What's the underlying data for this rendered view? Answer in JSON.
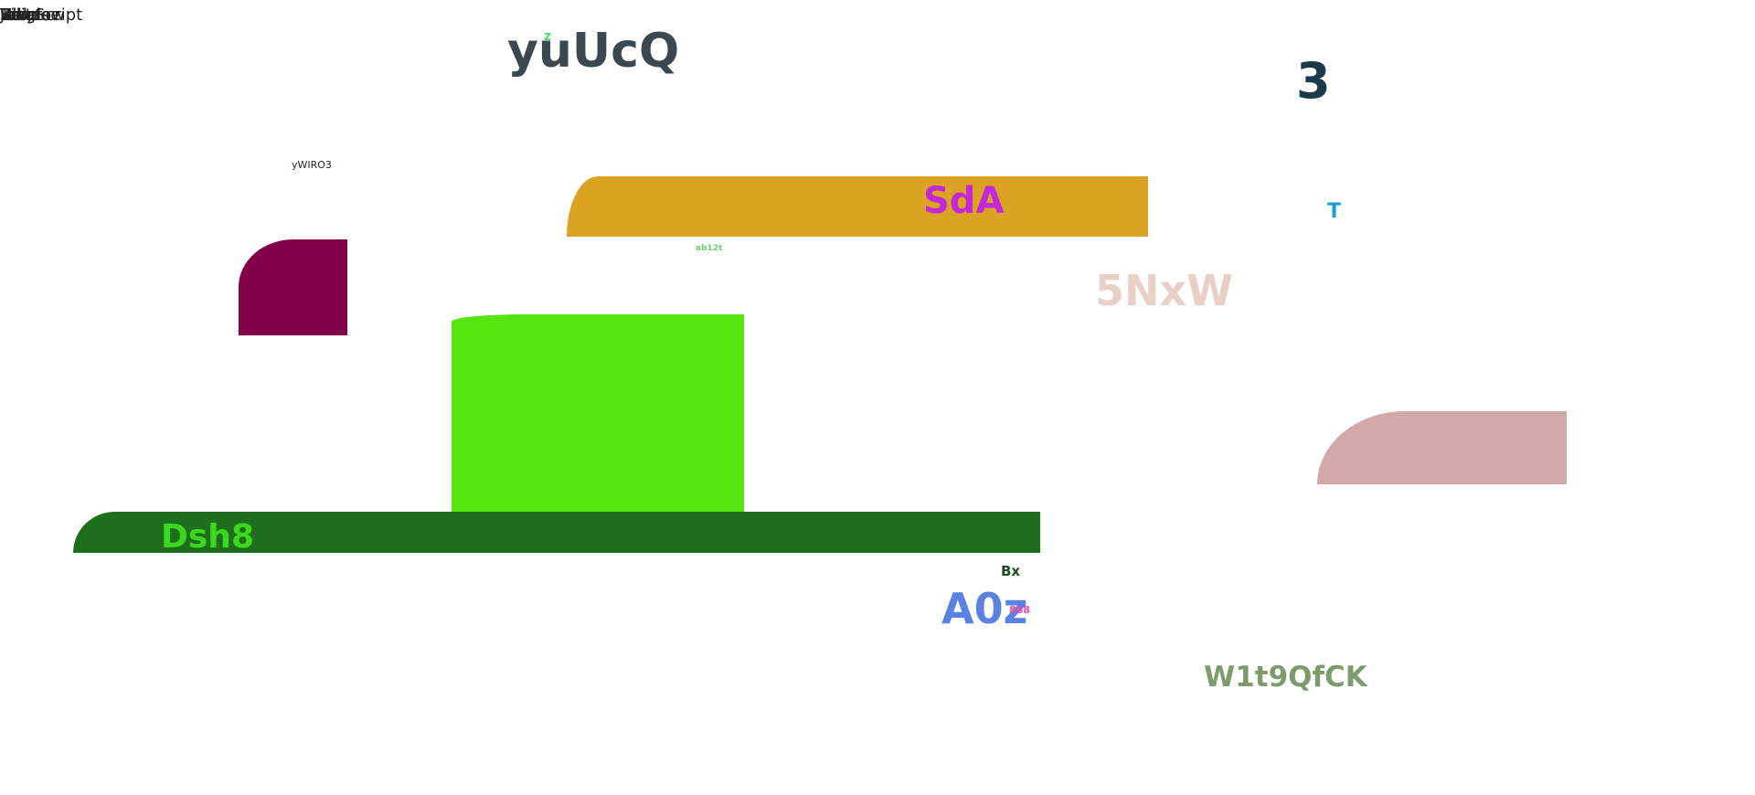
{
  "corner_labels": [
    "Window",
    "JavaScript",
    "Single",
    "Inverse",
    "Hide",
    "Tab",
    "Help",
    "Edit"
  ],
  "texts": {
    "yuucq": "yuUcQ",
    "z": "z",
    "three": "3",
    "ywiro3": "yWIRO3",
    "sda": "SdA",
    "t": "T",
    "ab12t": "ab12t",
    "fivenxw": "5NxW",
    "dsh8": "Dsh8",
    "bx": "Bx",
    "a0z": "A0z",
    "n868": "868",
    "w1t9qfck": "W1t9QfCK"
  },
  "colors": {
    "orange_bar": "#dca221",
    "maroon_block": "#820048",
    "lime_block": "#55e612",
    "green_bar": "#1d6e1d",
    "pink_block": "#d3a9a8"
  }
}
